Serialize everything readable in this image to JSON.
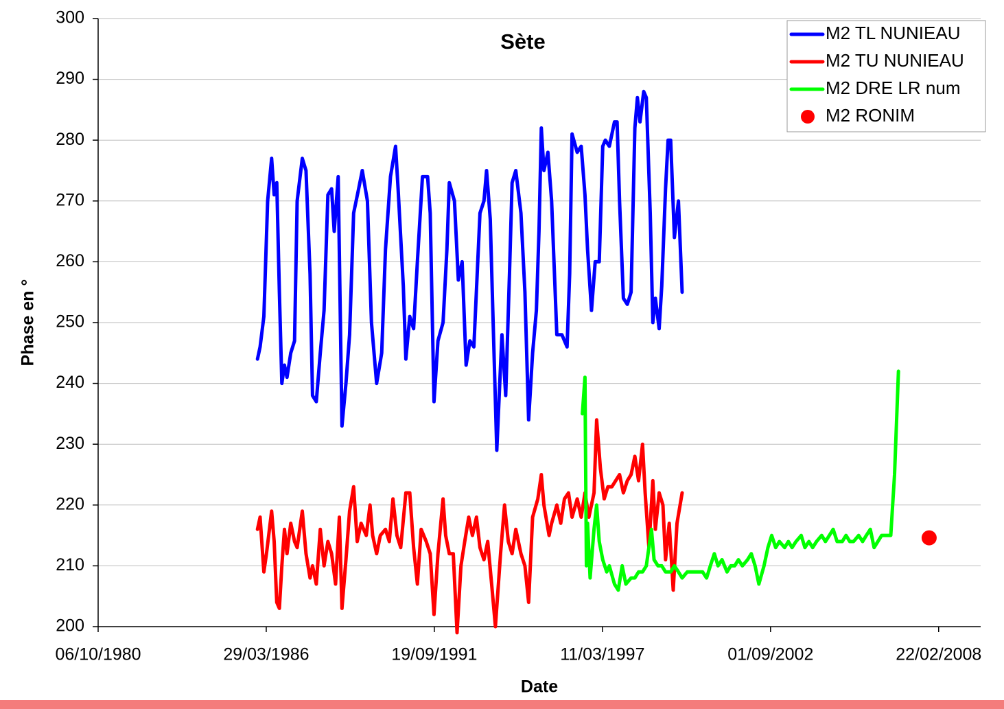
{
  "chart_data": {
    "type": "line",
    "title": "Sète",
    "x_label": "Date",
    "y_label": "Phase en °",
    "xlim": [
      "06/10/1980",
      "06/07/2009"
    ],
    "xticks": [
      "06/10/1980",
      "29/03/1986",
      "19/09/1991",
      "11/03/1997",
      "01/09/2002",
      "22/02/2008"
    ],
    "ylim": [
      200,
      300
    ],
    "yticks": [
      200,
      210,
      220,
      230,
      240,
      250,
      260,
      270,
      280,
      290,
      300
    ],
    "grid": true,
    "legend": "top-right",
    "series": [
      {
        "name": "M2 TL NUNIEAU",
        "color": "#0000ff",
        "x": [
          "15/12/1985",
          "15/01/1986",
          "01/03/1986",
          "15/04/1986",
          "01/06/1986",
          "01/07/1986",
          "01/08/1986",
          "01/09/1986",
          "01/10/1986",
          "01/11/1986",
          "01/12/1986",
          "15/01/1987",
          "01/03/1987",
          "01/04/1987",
          "01/06/1987",
          "15/07/1987",
          "01/09/1987",
          "01/10/1987",
          "15/11/1987",
          "01/01/1988",
          "15/02/1988",
          "01/04/1988",
          "15/05/1988",
          "15/06/1988",
          "01/08/1988",
          "15/09/1988",
          "01/11/1988",
          "15/12/1988",
          "01/02/1989",
          "01/04/1989",
          "15/05/1989",
          "15/07/1989",
          "01/09/1989",
          "01/11/1989",
          "01/01/1990",
          "15/02/1990",
          "15/04/1990",
          "15/06/1990",
          "15/07/1990",
          "15/09/1990",
          "15/10/1990",
          "01/12/1990",
          "15/01/1991",
          "01/03/1991",
          "01/05/1991",
          "01/07/1991",
          "01/08/1991",
          "15/09/1991",
          "01/11/1991",
          "01/01/1992",
          "15/02/1992",
          "15/03/1992",
          "15/05/1992",
          "01/07/1992",
          "15/08/1992",
          "01/10/1992",
          "15/11/1992",
          "01/01/1993",
          "15/03/1993",
          "01/05/1993",
          "01/06/1993",
          "15/07/1993",
          "15/08/1993",
          "01/10/1993",
          "15/11/1993",
          "01/12/1993",
          "15/01/1994",
          "01/03/1994",
          "01/04/1994",
          "15/05/1994",
          "15/07/1994",
          "01/09/1994",
          "15/10/1994",
          "01/12/1994",
          "15/01/1995",
          "15/02/1995",
          "15/03/1995",
          "15/04/1995",
          "01/06/1995",
          "15/07/1995",
          "15/09/1995",
          "15/11/1995",
          "15/01/1996",
          "15/02/1996",
          "15/03/1996",
          "15/05/1996",
          "01/07/1996",
          "15/08/1996",
          "15/09/1996",
          "01/11/1996",
          "15/12/1996",
          "01/02/1997",
          "15/03/1997",
          "15/04/1997",
          "01/06/1997",
          "01/08/1997",
          "01/09/1997",
          "01/10/1997",
          "15/11/1997",
          "01/01/1998",
          "15/02/1998",
          "01/04/1998",
          "01/05/1998",
          "01/06/1998",
          "15/07/1998",
          "15/08/1998",
          "01/10/1998",
          "01/11/1998",
          "01/12/1998",
          "15/01/1999",
          "15/02/1999",
          "01/04/1999",
          "01/05/1999",
          "01/06/1999",
          "15/07/1999",
          "01/09/1999",
          "15/10/1999"
        ],
        "values": [
          244,
          246,
          251,
          270,
          277,
          271,
          273,
          255,
          240,
          243,
          241,
          245,
          247,
          270,
          277,
          275,
          258,
          238,
          237,
          245,
          252,
          271,
          272,
          265,
          274,
          233,
          240,
          248,
          268,
          272,
          275,
          270,
          250,
          240,
          245,
          262,
          274,
          279,
          272,
          256,
          244,
          251,
          249,
          260,
          274,
          274,
          268,
          237,
          247,
          250,
          262,
          273,
          270,
          257,
          260,
          243,
          247,
          246,
          268,
          270,
          275,
          267,
          252,
          229,
          243,
          248,
          238,
          258,
          273,
          275,
          268,
          255,
          234,
          245,
          252,
          265,
          282,
          275,
          278,
          270,
          248,
          248,
          246,
          258,
          281,
          278,
          279,
          271,
          262,
          252,
          260,
          260,
          279,
          280,
          279,
          283,
          283,
          270,
          254,
          253,
          255,
          282,
          287,
          283,
          288,
          287,
          268,
          250,
          254,
          249,
          256,
          272,
          280,
          280,
          264,
          270,
          255
        ]
      },
      {
        "name": "M2 TU NUNIEAU",
        "color": "#ff0000",
        "x": [
          "15/12/1985",
          "15/01/1986",
          "01/03/1986",
          "01/04/1986",
          "01/06/1986",
          "01/07/1986",
          "01/08/1986",
          "01/09/1986",
          "01/10/1986",
          "01/11/1986",
          "01/12/1986",
          "15/01/1987",
          "01/03/1987",
          "01/04/1987",
          "01/06/1987",
          "15/07/1987",
          "01/09/1987",
          "01/10/1987",
          "15/11/1987",
          "01/01/1988",
          "15/02/1988",
          "01/04/1988",
          "15/05/1988",
          "01/07/1988",
          "15/08/1988",
          "15/09/1988",
          "01/11/1988",
          "15/12/1988",
          "01/02/1989",
          "15/03/1989",
          "01/05/1989",
          "01/07/1989",
          "15/08/1989",
          "15/09/1989",
          "01/11/1989",
          "15/12/1989",
          "15/02/1990",
          "01/04/1990",
          "15/05/1990",
          "01/07/1990",
          "15/08/1990",
          "15/10/1990",
          "01/12/1990",
          "15/01/1991",
          "01/03/1991",
          "15/04/1991",
          "15/06/1991",
          "01/08/1991",
          "15/09/1991",
          "01/11/1991",
          "01/01/1992",
          "01/02/1992",
          "15/03/1992",
          "01/05/1992",
          "15/06/1992",
          "01/08/1992",
          "15/09/1992",
          "01/11/1992",
          "15/12/1992",
          "01/02/1993",
          "15/03/1993",
          "01/05/1993",
          "15/06/1993",
          "01/08/1993",
          "15/09/1993",
          "15/11/1993",
          "01/01/1994",
          "15/02/1994",
          "01/04/1994",
          "15/05/1994",
          "15/07/1994",
          "01/09/1994",
          "15/10/1994",
          "01/12/1994",
          "01/02/1995",
          "15/03/1995",
          "15/04/1995",
          "15/06/1995",
          "15/07/1995",
          "15/09/1995",
          "01/11/1995",
          "15/12/1995",
          "01/02/1996",
          "15/03/1996",
          "15/05/1996",
          "01/07/1996",
          "15/08/1996",
          "01/10/1996",
          "01/12/1996",
          "01/01/1997",
          "15/02/1997",
          "01/04/1997",
          "15/05/1997",
          "01/07/1997",
          "15/08/1997",
          "01/10/1997",
          "15/11/1997",
          "01/01/1998",
          "15/02/1998",
          "01/04/1998",
          "15/05/1998",
          "01/07/1998",
          "01/08/1998",
          "15/09/1998",
          "01/11/1998",
          "01/12/1998",
          "15/01/1999",
          "01/03/1999",
          "01/04/1999",
          "15/05/1999",
          "01/07/1999",
          "15/08/1999",
          "15/10/1999"
        ],
        "values": [
          216,
          218,
          209,
          212,
          219,
          214,
          204,
          203,
          210,
          216,
          212,
          217,
          214,
          213,
          219,
          212,
          208,
          210,
          207,
          216,
          210,
          214,
          212,
          207,
          218,
          203,
          211,
          219,
          223,
          214,
          217,
          215,
          220,
          215,
          212,
          215,
          216,
          214,
          221,
          215,
          213,
          222,
          222,
          213,
          207,
          216,
          214,
          212,
          202,
          212,
          221,
          215,
          212,
          212,
          199,
          210,
          214,
          218,
          215,
          218,
          213,
          211,
          214,
          207,
          200,
          212,
          220,
          214,
          212,
          216,
          212,
          210,
          204,
          218,
          221,
          225,
          220,
          215,
          217,
          220,
          217,
          221,
          222,
          218,
          221,
          218,
          222,
          218,
          222,
          234,
          226,
          221,
          223,
          223,
          224,
          225,
          222,
          224,
          225,
          228,
          224,
          230,
          222,
          213,
          224,
          216,
          222,
          220,
          211,
          217,
          206,
          217,
          222
        ]
      },
      {
        "name": "M2 DRE LR num",
        "color": "#00ff00",
        "x": [
          "15/07/1996",
          "15/08/1996",
          "01/09/1996",
          "15/09/1996",
          "15/10/1996",
          "01/12/1996",
          "01/01/1997",
          "01/02/1997",
          "15/03/1997",
          "01/05/1997",
          "01/06/1997",
          "01/08/1997",
          "15/09/1997",
          "01/11/1997",
          "15/12/1997",
          "15/02/1998",
          "01/04/1998",
          "15/05/1998",
          "01/07/1998",
          "15/08/1998",
          "15/10/1998",
          "15/11/1998",
          "01/01/1999",
          "15/02/1999",
          "01/04/1999",
          "01/06/1999",
          "15/07/1999",
          "01/09/1999",
          "15/10/1999",
          "15/12/1999",
          "15/02/2000",
          "15/04/2000",
          "15/06/2000",
          "01/08/2000",
          "15/09/2000",
          "01/11/2000",
          "15/12/2000",
          "01/02/2001",
          "01/04/2001",
          "15/05/2001",
          "01/07/2001",
          "15/08/2001",
          "01/10/2001",
          "01/12/2001",
          "15/01/2002",
          "01/03/2002",
          "15/04/2002",
          "15/06/2002",
          "01/08/2002",
          "15/09/2002",
          "01/11/2002",
          "15/12/2002",
          "15/02/2003",
          "01/04/2003",
          "15/05/2003",
          "01/07/2003",
          "01/09/2003",
          "15/10/2003",
          "01/12/2003",
          "15/01/2004",
          "01/03/2004",
          "01/05/2004",
          "15/06/2004",
          "01/08/2004",
          "15/09/2004",
          "01/11/2004",
          "01/01/2005",
          "15/02/2005",
          "01/04/2005",
          "15/05/2005",
          "15/07/2005",
          "01/09/2005",
          "15/10/2005",
          "01/12/2005",
          "15/01/2006",
          "01/03/2006",
          "15/04/2006",
          "01/06/2006",
          "01/08/2006",
          "15/09/2006",
          "01/11/2006"
        ],
        "values": [
          235,
          241,
          210,
          217,
          208,
          216,
          220,
          214,
          211,
          209,
          210,
          207,
          206,
          210,
          207,
          208,
          208,
          209,
          209,
          210,
          216,
          211,
          210,
          210,
          209,
          209,
          210,
          209,
          208,
          209,
          209,
          209,
          209,
          208,
          210,
          212,
          210,
          211,
          209,
          210,
          210,
          211,
          210,
          211,
          212,
          210,
          207,
          210,
          213,
          215,
          213,
          214,
          213,
          214,
          213,
          214,
          215,
          213,
          214,
          213,
          214,
          215,
          214,
          215,
          216,
          214,
          214,
          215,
          214,
          214,
          215,
          214,
          215,
          216,
          213,
          214,
          215,
          215,
          215,
          225,
          242
        ]
      },
      {
        "name": "M2 RONIM",
        "color": "#ff0000",
        "type": "scatter",
        "x": [
          "01/11/2007"
        ],
        "values": [
          214.6
        ]
      }
    ]
  }
}
